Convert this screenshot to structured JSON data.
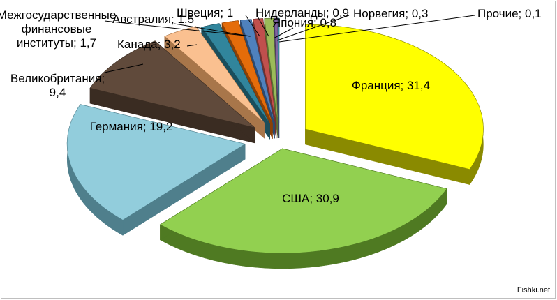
{
  "chart_data": {
    "type": "pie",
    "variant": "3d-exploded",
    "title": "",
    "slices": [
      {
        "label": "Франция",
        "value": 31.4,
        "display": "Франция; 31,4",
        "color": "#ffff00",
        "side": "#8a8a00"
      },
      {
        "label": "США",
        "value": 30.9,
        "display": "США; 30,9",
        "color": "#92d050",
        "side": "#4f7a22"
      },
      {
        "label": "Германия",
        "value": 19.2,
        "display": "Германия; 19,2",
        "color": "#92cddc",
        "side": "#4f7f8c"
      },
      {
        "label": "Великобритания",
        "value": 9.4,
        "display": "Великобритания; 9,4",
        "color": "#604a3b",
        "side": "#3a2c22"
      },
      {
        "label": "Канада",
        "value": 3.2,
        "display": "Канада; 3,2",
        "color": "#fac090",
        "side": "#a8764a"
      },
      {
        "label": "Межгосударственные финансовые институты",
        "value": 1.7,
        "display": "Межгосударственные финансовые институты; 1,7",
        "color": "#31859c",
        "side": "#1a4e5c"
      },
      {
        "label": "Австралия",
        "value": 1.5,
        "display": "Австралия; 1,5",
        "color": "#e46c0a",
        "side": "#8a4006"
      },
      {
        "label": "Швеция",
        "value": 1,
        "display": "Швеция; 1",
        "color": "#4f81bd",
        "side": "#2c4a70"
      },
      {
        "label": "Нидерланды",
        "value": 0.9,
        "display": "Нидерланды; 0,9",
        "color": "#c0504d",
        "side": "#73302e"
      },
      {
        "label": "Япония",
        "value": 0.8,
        "display": "Япония; 0,8",
        "color": "#9bbb59",
        "side": "#5b7033"
      },
      {
        "label": "Норвегия",
        "value": 0.3,
        "display": "Норвегия; 0,3",
        "color": "#8064a2",
        "side": "#4b3a60"
      },
      {
        "label": "Прочие",
        "value": 0.1,
        "display": "Прочие; 0,1",
        "color": "#4bacc6",
        "side": "#2b6676"
      }
    ],
    "legend": "none",
    "data_labels": "outside with leader lines"
  },
  "watermark": "Fishki.net"
}
